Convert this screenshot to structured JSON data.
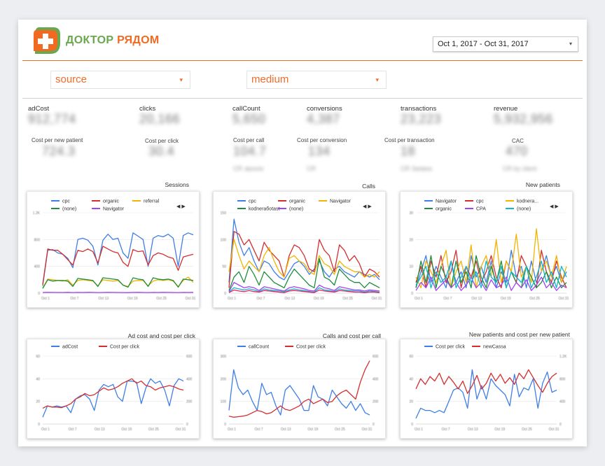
{
  "header": {
    "logo_text_a": "ДОКТОР",
    "logo_text_b": "РЯДОМ",
    "date_range": "Oct 1, 2017 - Oct 31, 2017",
    "caret": "▾"
  },
  "filters": [
    {
      "label": "source"
    },
    {
      "label": "medium"
    }
  ],
  "colors": {
    "accent": "#ef6c29",
    "logo_green": "#6aa84f",
    "blue": "#3f7ee8",
    "red": "#d32f2f",
    "yellow": "#f2b400",
    "green": "#1e8e3e",
    "purple": "#a142f4",
    "teal": "#12b5cb",
    "pink": "#e91e63",
    "orange": "#f57c00"
  },
  "kpis": [
    {
      "label": "adCost",
      "value": "912,774"
    },
    {
      "label": "clicks",
      "value": "20,166"
    },
    {
      "label": "callCount",
      "value": "5,650"
    },
    {
      "label": "conversions",
      "value": "4,387"
    },
    {
      "label": "transactions",
      "value": "23,223"
    },
    {
      "label": "revenue",
      "value": "5,932,956"
    }
  ],
  "kpis2": [
    {
      "label": "Cost per new patient",
      "value": "724.3",
      "sub": ""
    },
    {
      "label": "Cost per click",
      "value": "30.4",
      "sub": ""
    },
    {
      "label": "Cost per call",
      "value": "104.7",
      "sub": "CR звонок"
    },
    {
      "label": "Cost per conversion",
      "value": "134",
      "sub": "CR"
    },
    {
      "label": "Cost per transaction",
      "value": "18",
      "sub": "CR Заявка"
    },
    {
      "label": "CAC",
      "value": "470",
      "sub": "CR by client"
    }
  ],
  "nav_arrows": "◀ ▶",
  "chart_data": [
    {
      "type": "line",
      "title": "Sessions",
      "x_ticks": [
        "Oct 1",
        "Oct 7",
        "Oct 13",
        "Oct 19",
        "Oct 25",
        "Oct 31"
      ],
      "y_ticks": [
        "0",
        "400",
        "800",
        "1.2K"
      ],
      "ylim": [
        0,
        1200
      ],
      "series": [
        {
          "name": "cpc",
          "color": "#3f7ee8",
          "values": [
            110,
            640,
            650,
            600,
            580,
            520,
            380,
            800,
            820,
            790,
            700,
            420,
            790,
            880,
            800,
            820,
            600,
            520,
            900,
            850,
            800,
            400,
            820,
            860,
            840,
            880,
            820,
            400,
            860,
            900,
            870
          ]
        },
        {
          "name": "organic",
          "color": "#d32f2f",
          "values": [
            130,
            660,
            640,
            640,
            580,
            500,
            420,
            640,
            620,
            660,
            620,
            450,
            700,
            660,
            620,
            600,
            460,
            400,
            650,
            620,
            630,
            420,
            560,
            600,
            580,
            540,
            520,
            340,
            540,
            560,
            580
          ]
        },
        {
          "name": "referral",
          "color": "#f2b400",
          "values": [
            80,
            210,
            200,
            190,
            180,
            200,
            120,
            190,
            200,
            190,
            180,
            110,
            200,
            190,
            180,
            190,
            120,
            100,
            180,
            190,
            190,
            110,
            180,
            200,
            190,
            200,
            180,
            100,
            190,
            240,
            160
          ]
        },
        {
          "name": "(none)",
          "color": "#1e8e3e",
          "values": [
            70,
            200,
            180,
            190,
            190,
            180,
            100,
            220,
            210,
            200,
            190,
            100,
            230,
            220,
            210,
            200,
            120,
            90,
            230,
            210,
            200,
            100,
            230,
            210,
            200,
            210,
            190,
            90,
            210,
            200,
            190
          ]
        },
        {
          "name": "Navigator",
          "color": "#a142f4",
          "values": [
            10,
            12,
            11,
            10,
            10,
            12,
            9,
            11,
            10,
            12,
            11,
            9,
            10,
            12,
            11,
            10,
            9,
            8,
            11,
            12,
            10,
            9,
            11,
            10,
            12,
            11,
            10,
            9,
            11,
            10,
            12
          ]
        }
      ]
    },
    {
      "type": "line",
      "title": "Calls",
      "x_ticks": [
        "Oct 1",
        "Oct 7",
        "Oct 13",
        "Oct 19",
        "Oct 25",
        "Oct 31"
      ],
      "y_ticks": [
        "0",
        "50",
        "100",
        "150"
      ],
      "ylim": [
        0,
        150
      ],
      "series": [
        {
          "name": "cpc",
          "color": "#3f7ee8",
          "values": [
            20,
            138,
            95,
            70,
            85,
            60,
            40,
            60,
            55,
            40,
            30,
            25,
            40,
            55,
            60,
            50,
            35,
            45,
            60,
            40,
            30,
            45,
            50,
            40,
            35,
            30,
            40,
            35,
            30,
            35,
            25
          ]
        },
        {
          "name": "organic",
          "color": "#d32f2f",
          "values": [
            10,
            115,
            110,
            90,
            100,
            80,
            60,
            95,
            80,
            70,
            60,
            30,
            70,
            90,
            85,
            70,
            45,
            40,
            100,
            80,
            70,
            40,
            90,
            80,
            60,
            70,
            55,
            30,
            45,
            40,
            30
          ]
        },
        {
          "name": "Navigator",
          "color": "#f2b400",
          "values": [
            40,
            100,
            70,
            45,
            60,
            50,
            40,
            70,
            85,
            60,
            40,
            30,
            65,
            70,
            60,
            55,
            40,
            35,
            70,
            55,
            50,
            35,
            60,
            50,
            45,
            40,
            40,
            30,
            35,
            30,
            40
          ]
        },
        {
          "name": "kodneraбotast",
          "color": "#1e8e3e",
          "values": [
            5,
            30,
            40,
            20,
            50,
            35,
            15,
            40,
            30,
            20,
            15,
            10,
            30,
            45,
            35,
            25,
            15,
            10,
            65,
            30,
            25,
            15,
            45,
            35,
            25,
            20,
            20,
            10,
            20,
            15,
            10
          ]
        },
        {
          "name": "(none)",
          "color": "#a142f4",
          "values": [
            3,
            20,
            15,
            10,
            12,
            10,
            5,
            12,
            10,
            8,
            6,
            4,
            10,
            12,
            10,
            8,
            5,
            4,
            15,
            10,
            8,
            5,
            12,
            10,
            8,
            6,
            6,
            4,
            6,
            5,
            4
          ]
        },
        {
          "name": "",
          "color": "#12b5cb",
          "values": [
            2,
            10,
            8,
            6,
            8,
            6,
            3,
            8,
            6,
            5,
            4,
            3,
            6,
            8,
            6,
            5,
            3,
            2,
            10,
            6,
            5,
            3,
            8,
            6,
            5,
            4,
            4,
            2,
            4,
            3,
            2
          ]
        },
        {
          "name": "",
          "color": "#e91e63",
          "values": [
            1,
            6,
            4,
            3,
            5,
            3,
            2,
            5,
            4,
            3,
            2,
            1,
            4,
            5,
            4,
            3,
            2,
            1,
            6,
            4,
            3,
            2,
            5,
            4,
            3,
            2,
            2,
            1,
            2,
            2,
            1
          ]
        }
      ]
    },
    {
      "type": "line",
      "title": "New patients",
      "x_ticks": [
        "Oct 1",
        "Oct 7",
        "Oct 13",
        "Oct 19",
        "Oct 25",
        "Oct 31"
      ],
      "y_ticks": [
        "0",
        "10",
        "20",
        "30"
      ],
      "ylim": [
        0,
        30
      ],
      "series": [
        {
          "name": "Navigator",
          "color": "#3f7ee8",
          "values": [
            2,
            8,
            14,
            4,
            10,
            6,
            2,
            12,
            4,
            8,
            2,
            14,
            6,
            10,
            4,
            12,
            2,
            8,
            4,
            16,
            6,
            10,
            2,
            12,
            4,
            8,
            14,
            6,
            10,
            4,
            8
          ]
        },
        {
          "name": "cpc",
          "color": "#d32f2f",
          "values": [
            4,
            10,
            2,
            12,
            6,
            14,
            4,
            8,
            16,
            2,
            10,
            6,
            12,
            4,
            8,
            14,
            6,
            2,
            12,
            8,
            4,
            14,
            10,
            6,
            2,
            16,
            8,
            4,
            12,
            6,
            2
          ]
        },
        {
          "name": "kodnera...",
          "color": "#f2b400",
          "values": [
            6,
            2,
            12,
            8,
            4,
            10,
            16,
            2,
            8,
            12,
            4,
            18,
            2,
            10,
            14,
            6,
            20,
            4,
            12,
            8,
            22,
            6,
            10,
            4,
            24,
            8,
            12,
            6,
            14,
            4,
            10
          ]
        },
        {
          "name": "organic",
          "color": "#1e8e3e",
          "values": [
            2,
            12,
            4,
            14,
            2,
            10,
            6,
            2,
            12,
            4,
            8,
            2,
            14,
            6,
            2,
            10,
            4,
            12,
            2,
            8,
            4,
            2,
            10,
            6,
            2,
            4,
            8,
            2,
            6,
            2,
            4
          ]
        },
        {
          "name": "CPA",
          "color": "#a142f4",
          "values": [
            1,
            4,
            2,
            6,
            1,
            3,
            5,
            2,
            4,
            1,
            3,
            6,
            2,
            4,
            1,
            5,
            2,
            3,
            6,
            1,
            4,
            2,
            5,
            1,
            3,
            6,
            2,
            4,
            1,
            3,
            2
          ]
        },
        {
          "name": "(none)",
          "color": "#12b5cb",
          "values": [
            3,
            6,
            10,
            2,
            8,
            4,
            6,
            12,
            2,
            6,
            10,
            4,
            8,
            2,
            12,
            6,
            4,
            10,
            2,
            8,
            6,
            4,
            10,
            2,
            6,
            12,
            4,
            8,
            2,
            10,
            6
          ]
        }
      ]
    },
    {
      "type": "line",
      "title": "Ad cost and cost per click",
      "x_ticks": [
        "Oct 1",
        "Oct 7",
        "Oct 13",
        "Oct 19",
        "Oct 25",
        "Oct 31"
      ],
      "y_ticks": [
        "0",
        "20",
        "40",
        "60"
      ],
      "ylim": [
        0,
        60
      ],
      "y2_ticks": [
        "0",
        "200",
        "400",
        "600"
      ],
      "y2lim": [
        0,
        600
      ],
      "series": [
        {
          "name": "adCost",
          "color": "#3f7ee8",
          "axis": "left",
          "values": [
            6,
            16,
            15,
            16,
            15,
            16,
            10,
            22,
            25,
            26,
            22,
            12,
            30,
            35,
            33,
            35,
            24,
            20,
            38,
            38,
            37,
            18,
            32,
            40,
            36,
            38,
            30,
            16,
            34,
            40,
            38
          ]
        },
        {
          "name": "Cost per click",
          "color": "#d32f2f",
          "axis": "right",
          "values": [
            140,
            160,
            150,
            150,
            145,
            160,
            180,
            220,
            240,
            270,
            250,
            260,
            290,
            320,
            300,
            310,
            330,
            360,
            380,
            400,
            360,
            380,
            340,
            330,
            300,
            320,
            330,
            340,
            330,
            310,
            300
          ]
        }
      ]
    },
    {
      "type": "line",
      "title": "Calls and cost per call",
      "x_ticks": [
        "Oct 1",
        "Oct 7",
        "Oct 13",
        "Oct 19",
        "Oct 25",
        "Oct 31"
      ],
      "y_ticks": [
        "0",
        "100",
        "200",
        "300"
      ],
      "ylim": [
        0,
        300
      ],
      "y2_ticks": [
        "0",
        "200",
        "400",
        "600"
      ],
      "y2lim": [
        0,
        600
      ],
      "series": [
        {
          "name": "callCount",
          "color": "#3f7ee8",
          "axis": "left",
          "values": [
            60,
            240,
            160,
            130,
            150,
            100,
            60,
            180,
            130,
            140,
            80,
            40,
            150,
            170,
            140,
            110,
            60,
            60,
            170,
            120,
            110,
            80,
            150,
            120,
            90,
            70,
            100,
            60,
            90,
            50,
            40
          ]
        },
        {
          "name": "Cost per click",
          "color": "#d32f2f",
          "axis": "right",
          "values": [
            70,
            60,
            65,
            70,
            80,
            100,
            120,
            110,
            90,
            100,
            130,
            160,
            130,
            120,
            140,
            160,
            200,
            220,
            180,
            200,
            220,
            190,
            200,
            250,
            280,
            300,
            260,
            220,
            370,
            480,
            560
          ]
        }
      ]
    },
    {
      "type": "line",
      "title": "New patients and cost per new patient",
      "x_ticks": [
        "Oct 1",
        "Oct 7",
        "Oct 13",
        "Oct 19",
        "Oct 25",
        "Oct 31"
      ],
      "y_ticks": [
        "0",
        "20",
        "40",
        "60"
      ],
      "ylim": [
        0,
        60
      ],
      "y2_ticks": [
        "0",
        "400",
        "800",
        "1.2K"
      ],
      "y2lim": [
        0,
        1200
      ],
      "series": [
        {
          "name": "Cost per click",
          "color": "#3f7ee8",
          "axis": "left",
          "values": [
            5,
            14,
            12,
            12,
            10,
            12,
            10,
            20,
            30,
            32,
            28,
            14,
            48,
            22,
            34,
            22,
            40,
            34,
            30,
            26,
            16,
            44,
            24,
            32,
            30,
            40,
            14,
            36,
            46,
            28,
            30
          ]
        },
        {
          "name": "newCassa",
          "color": "#d32f2f",
          "axis": "right",
          "values": [
            620,
            800,
            700,
            840,
            760,
            900,
            700,
            840,
            740,
            620,
            760,
            540,
            680,
            860,
            620,
            720,
            900,
            760,
            880,
            720,
            820,
            700,
            900,
            800,
            960,
            820,
            680,
            560,
            720,
            840,
            900
          ]
        }
      ]
    }
  ]
}
